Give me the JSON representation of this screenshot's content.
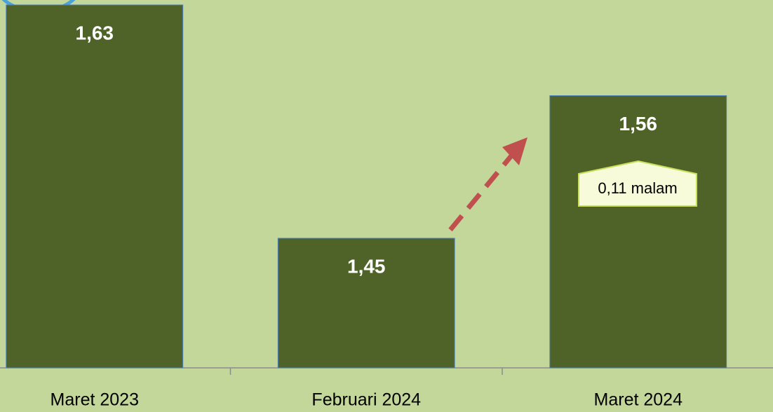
{
  "chart_data": {
    "type": "bar",
    "categories": [
      "Maret 2023",
      "Februari 2024",
      "Maret 2024"
    ],
    "values": [
      1.63,
      1.45,
      1.56
    ],
    "value_labels": [
      "1,63",
      "1,45",
      "1,56"
    ],
    "color": "#4f6228",
    "ylim": [
      1.35,
      1.65
    ],
    "annotation": "0,11 malam"
  }
}
